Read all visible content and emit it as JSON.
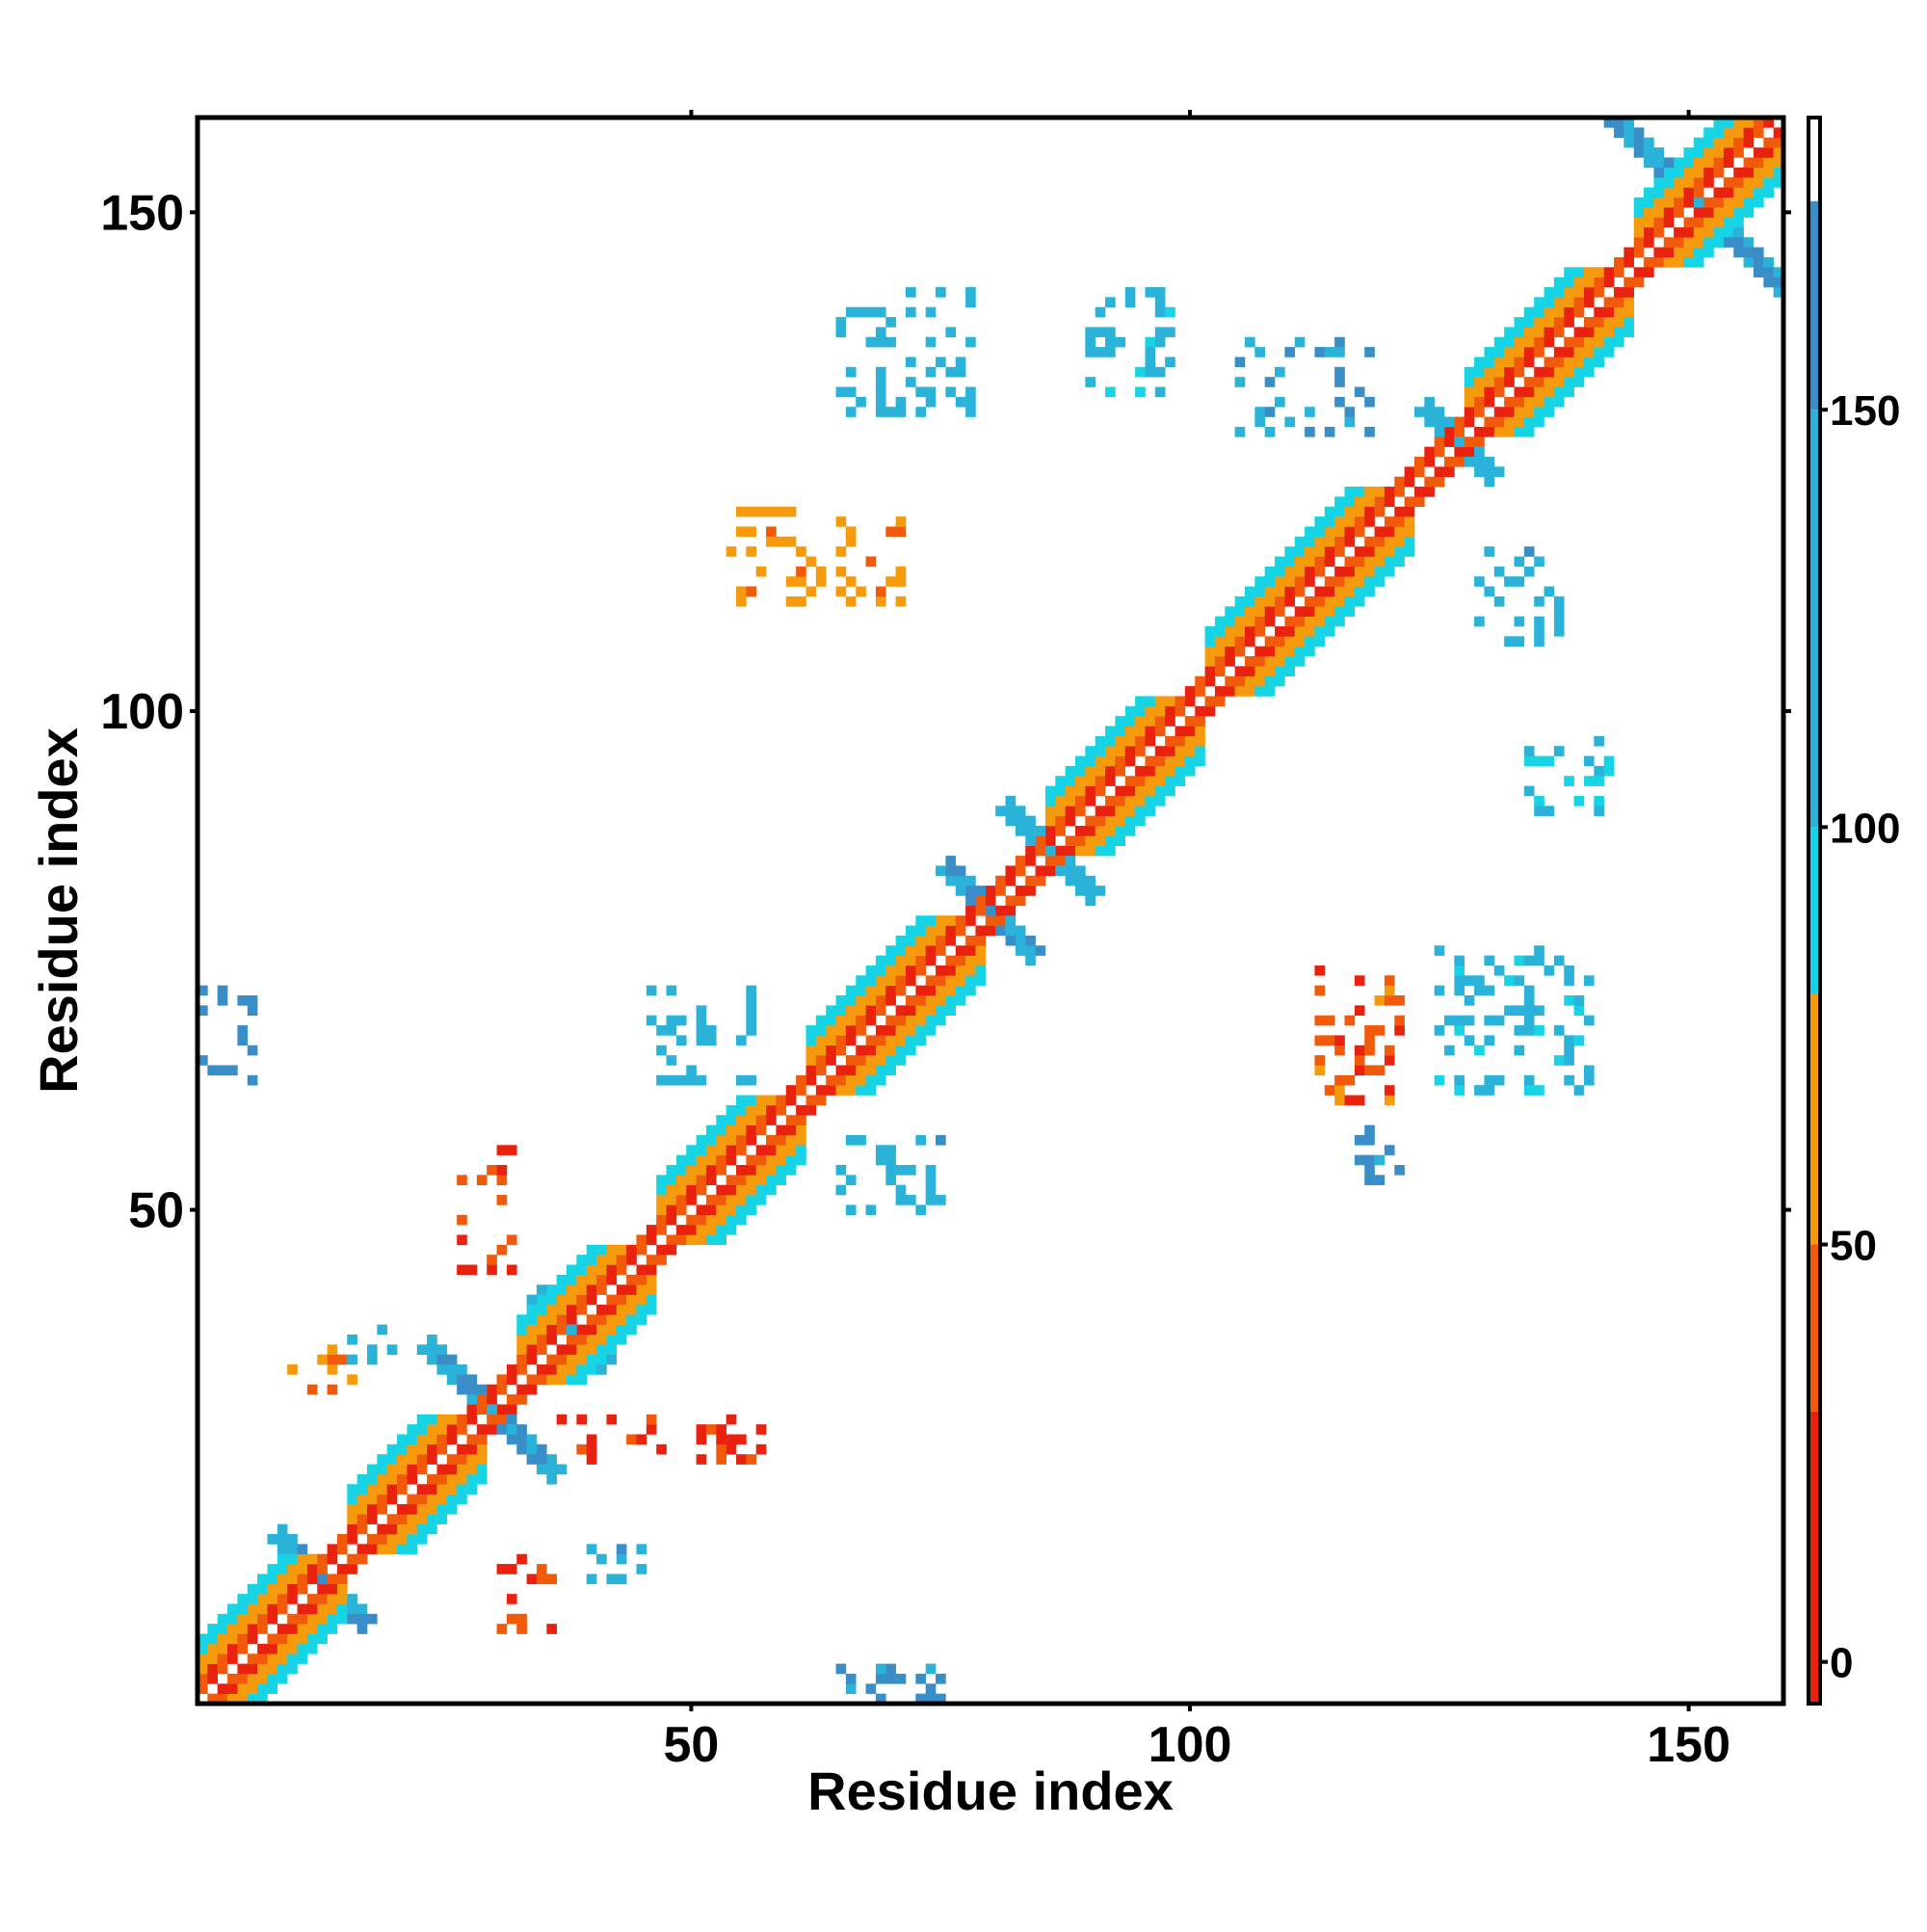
{
  "chart_data": {
    "type": "heatmap",
    "title": "",
    "xlabel": "Residue index",
    "ylabel": "Residue index",
    "xlim": [
      1,
      159
    ],
    "ylim": [
      1,
      159
    ],
    "x_ticks": [
      50,
      100,
      150
    ],
    "y_ticks": [
      50,
      100,
      150
    ],
    "grid": false,
    "legend": "right",
    "colorbar": {
      "range": [
        -5,
        185
      ],
      "ticks": [
        0,
        50,
        100,
        150
      ],
      "bands": [
        {
          "from": -5,
          "to": 30,
          "color": "#e8220f"
        },
        {
          "from": 30,
          "to": 50,
          "color": "#f05a0a"
        },
        {
          "from": 50,
          "to": 80,
          "color": "#f59a0c"
        },
        {
          "from": 80,
          "to": 100,
          "color": "#16d4e4"
        },
        {
          "from": 100,
          "to": 150,
          "color": "#2ab2d8"
        },
        {
          "from": 150,
          "to": 175,
          "color": "#3a8ec8"
        },
        {
          "from": 175,
          "to": 185,
          "color": "#ffffff"
        }
      ]
    },
    "helices": [
      {
        "start": 1,
        "end": 14,
        "value": 45
      },
      {
        "start": 16,
        "end": 28,
        "value": 50
      },
      {
        "start": 33,
        "end": 45,
        "value": 45
      },
      {
        "start": 47,
        "end": 60,
        "value": 48
      },
      {
        "start": 62,
        "end": 78,
        "value": 50
      },
      {
        "start": 86,
        "end": 100,
        "value": 45
      },
      {
        "start": 102,
        "end": 121,
        "value": 50
      },
      {
        "start": 128,
        "end": 143,
        "value": 50
      },
      {
        "start": 145,
        "end": 159,
        "value": 48
      }
    ],
    "crossings": [
      {
        "x": 13,
        "y": 13,
        "half": 4,
        "value": 150
      },
      {
        "x": 30,
        "y": 30,
        "half": 6,
        "value": 150
      },
      {
        "x": 38,
        "y": 38,
        "half": 3,
        "value": 140
      },
      {
        "x": 80,
        "y": 80,
        "half": 4,
        "value": 150
      },
      {
        "x": 86,
        "y": 86,
        "half": 4,
        "value": 140
      },
      {
        "x": 127,
        "y": 127,
        "half": 3,
        "value": 120
      },
      {
        "x": 151,
        "y": 151,
        "half": 9,
        "value": 150
      }
    ],
    "blocks": [
      {
        "x": [
          10,
          16
        ],
        "y": [
          32,
          37
        ],
        "value": 50
      },
      {
        "x": [
          15,
          20
        ],
        "y": [
          35,
          38
        ],
        "value": 130
      },
      {
        "x": [
          27,
          32
        ],
        "y": [
          44,
          56
        ],
        "value": 30
      },
      {
        "x": [
          31,
          36
        ],
        "y": [
          8,
          16
        ],
        "value": 30
      },
      {
        "x": [
          39,
          45
        ],
        "y": [
          12,
          16
        ],
        "value": 140
      },
      {
        "x": [
          37,
          57
        ],
        "y": [
          25,
          29
        ],
        "value": 25
      },
      {
        "x": [
          1,
          6
        ],
        "y": [
          63,
          72
        ],
        "value": 160
      },
      {
        "x": [
          46,
          56
        ],
        "y": [
          63,
          72
        ],
        "value": 120
      },
      {
        "x": [
          65,
          75
        ],
        "y": [
          50,
          57
        ],
        "value": 140
      },
      {
        "x": [
          64,
          75
        ],
        "y": [
          1,
          4
        ],
        "value": 160
      },
      {
        "x": [
          54,
          71
        ],
        "y": [
          111,
          120
        ],
        "value": 60
      },
      {
        "x": [
          65,
          78
        ],
        "y": [
          130,
          142
        ],
        "value": 120
      },
      {
        "x": [
          90,
          98
        ],
        "y": [
          132,
          142
        ],
        "value": 110
      },
      {
        "x": [
          105,
          118
        ],
        "y": [
          128,
          137
        ],
        "value": 150
      },
      {
        "x": [
          113,
          121
        ],
        "y": [
          61,
          74
        ],
        "value": 40
      },
      {
        "x": [
          115,
          121
        ],
        "y": [
          53,
          58
        ],
        "value": 160
      },
      {
        "x": [
          125,
          140
        ],
        "y": [
          62,
          76
        ],
        "value": 110
      },
      {
        "x": [
          129,
          137
        ],
        "y": [
          107,
          116
        ],
        "value": 140
      },
      {
        "x": [
          134,
          142
        ],
        "y": [
          90,
          97
        ],
        "value": 100
      }
    ]
  },
  "colors": {
    "frame": "#000000",
    "background": "#ffffff"
  }
}
